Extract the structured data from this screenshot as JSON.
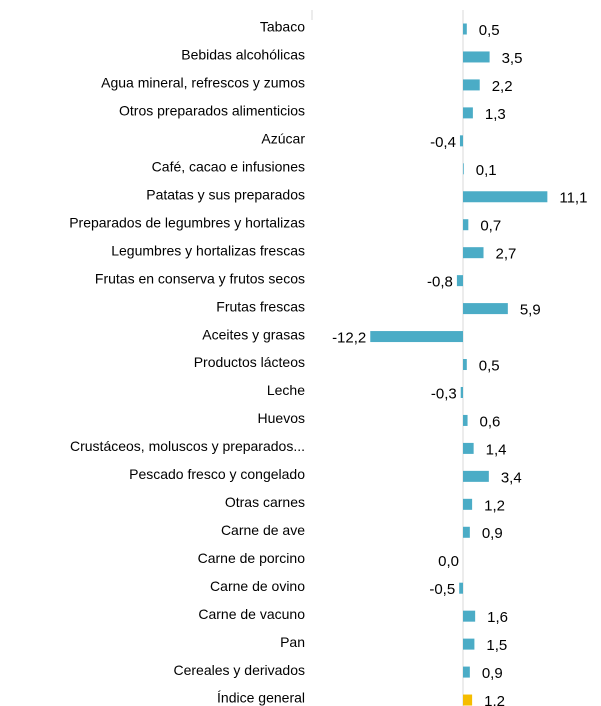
{
  "chart_data": {
    "type": "bar",
    "orientation": "horizontal",
    "categories": [
      "Tabaco",
      "Bebidas alcohólicas",
      "Agua mineral, refrescos  y zumos",
      "Otros preparados alimenticios",
      "Azúcar",
      "Café, cacao e infusiones",
      "Patatas y sus preparados",
      "Preparados de legumbres  y hortalizas",
      "Legumbres y hortalizas frescas",
      "Frutas en conserva y frutos secos",
      "Frutas frescas",
      "Aceites y grasas",
      "Productos lácteos",
      "Leche",
      "Huevos",
      "Crustáceos, moluscos y preparados...",
      "Pescado fresco y congelado",
      "Otras carnes",
      "Carne de ave",
      "Carne de porcino",
      "Carne de ovino",
      "Carne de vacuno",
      "Pan",
      "Cereales y derivados",
      "Índice general"
    ],
    "values": [
      0.5,
      3.5,
      2.2,
      1.3,
      -0.4,
      0.1,
      11.1,
      0.7,
      2.7,
      -0.8,
      5.9,
      -12.2,
      0.5,
      -0.3,
      0.6,
      1.4,
      3.4,
      1.2,
      0.9,
      0.0,
      -0.5,
      1.6,
      1.5,
      0.9,
      1.2
    ],
    "value_labels": [
      "0,5",
      "3,5",
      "2,2",
      "1,3",
      "-0,4",
      "0,1",
      "11,1",
      "0,7",
      "2,7",
      "-0,8",
      "5,9",
      "-12,2",
      "0,5",
      "-0,3",
      "0,6",
      "1,4",
      "3,4",
      "1,2",
      "0,9",
      "0,0",
      "-0,5",
      "1,6",
      "1,5",
      "0,9",
      "1,2"
    ],
    "colors": [
      "#4bacc6",
      "#4bacc6",
      "#4bacc6",
      "#4bacc6",
      "#4bacc6",
      "#4bacc6",
      "#4bacc6",
      "#4bacc6",
      "#4bacc6",
      "#4bacc6",
      "#4bacc6",
      "#4bacc6",
      "#4bacc6",
      "#4bacc6",
      "#4bacc6",
      "#4bacc6",
      "#4bacc6",
      "#4bacc6",
      "#4bacc6",
      "#4bacc6",
      "#4bacc6",
      "#4bacc6",
      "#4bacc6",
      "#4bacc6",
      "#f5bd00"
    ]
  }
}
